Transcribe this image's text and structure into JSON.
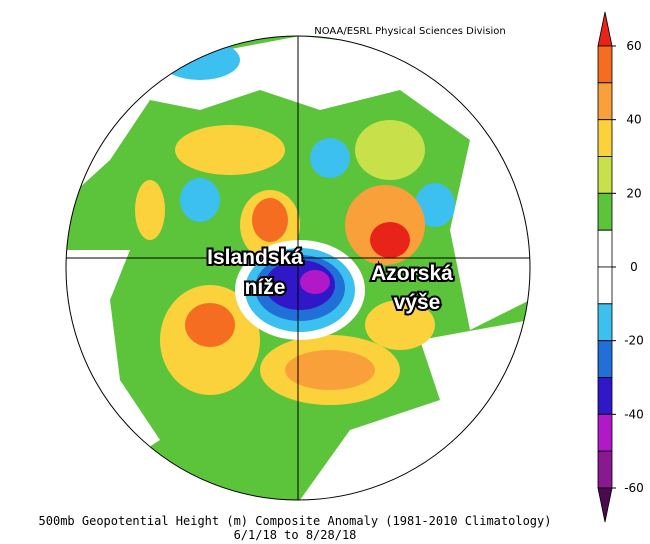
{
  "credit": "NOAA/ESRL Physical Sciences Division",
  "annotations": [
    {
      "lines": [
        "Islandská",
        "níže"
      ]
    },
    {
      "lines": [
        "Azorská",
        "výše"
      ]
    }
  ],
  "colorbar": {
    "ticks": [
      60,
      40,
      20,
      0,
      -20,
      -40,
      -60
    ],
    "colors": [
      "#e8231a",
      "#f46d20",
      "#f9a03a",
      "#fcd23c",
      "#c8e04a",
      "#5cc43a",
      "#ffffff",
      "#ffffff",
      "#3cc0f0",
      "#2070d8",
      "#3018c8",
      "#b018c8",
      "#8a1890",
      "#4a0a50"
    ]
  },
  "caption": [
    "500mb Geopotential Height (m) Composite Anomaly (1981-2010 Climatology)",
    "6/1/18  to 8/28/18"
  ]
}
